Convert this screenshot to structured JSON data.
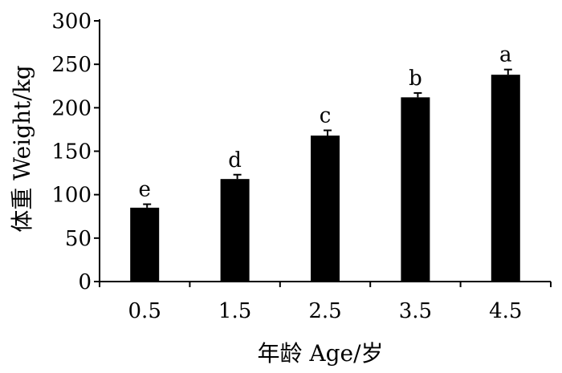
{
  "chart_data": {
    "type": "bar",
    "categories": [
      "0.5",
      "1.5",
      "2.5",
      "3.5",
      "4.5"
    ],
    "values": [
      85,
      118,
      168,
      212,
      238
    ],
    "error": [
      4,
      5,
      6,
      5,
      6
    ],
    "significance_labels": [
      "e",
      "d",
      "c",
      "b",
      "a"
    ],
    "xlabel": "年龄  Age/岁",
    "ylabel": "体重  Weight/kg",
    "ylim": [
      0,
      300
    ],
    "yticks": [
      0,
      50,
      100,
      150,
      200,
      250,
      300
    ],
    "grid": false,
    "bar_color": "#000000"
  }
}
